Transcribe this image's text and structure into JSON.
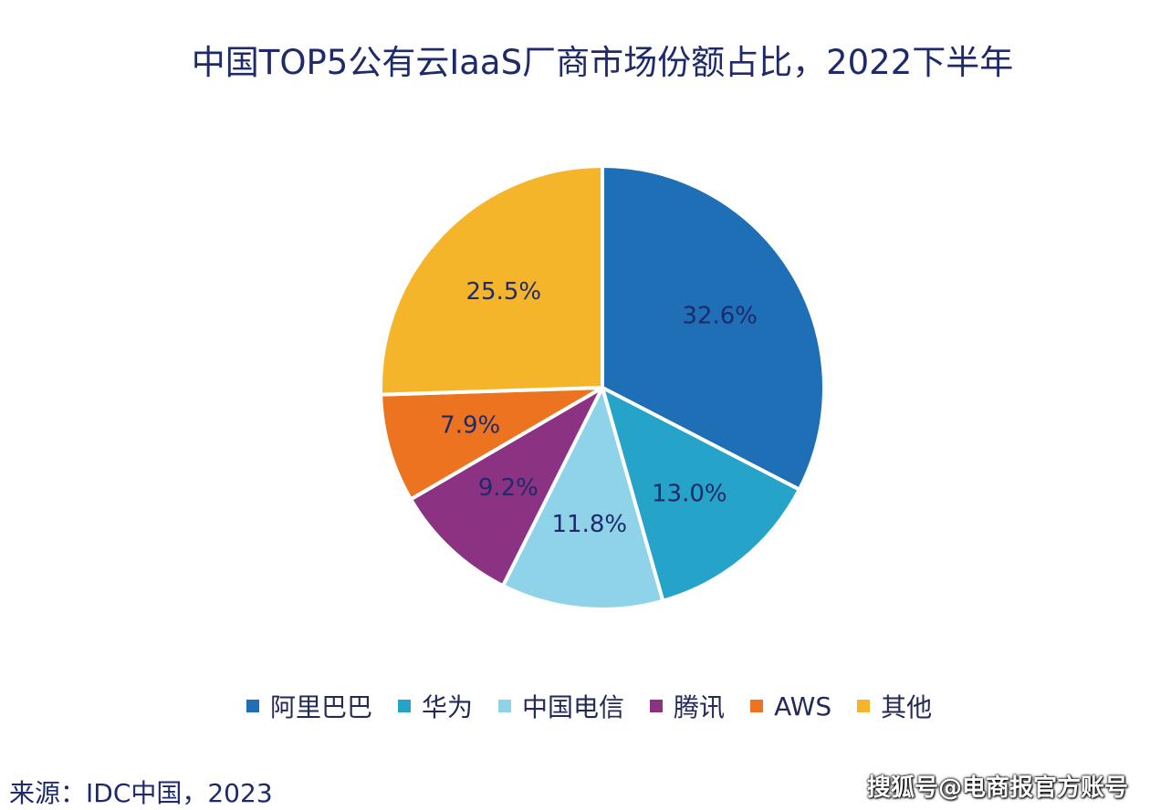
{
  "chart_data": {
    "type": "pie",
    "title": "中国TOP5公有云IaaS厂商市场份额占比，2022下半年",
    "slices": [
      {
        "label": "阿里巴巴",
        "value": 32.6,
        "display": "32.6%",
        "color": "#1e6fb6"
      },
      {
        "label": "华为",
        "value": 13.0,
        "display": "13.0%",
        "color": "#26a3c9"
      },
      {
        "label": "中国电信",
        "value": 11.8,
        "display": "11.8%",
        "color": "#8fd3e8"
      },
      {
        "label": "腾讯",
        "value": 9.2,
        "display": "9.2%",
        "color": "#8b3283"
      },
      {
        "label": "AWS",
        "value": 7.9,
        "display": "7.9%",
        "color": "#ec7420"
      },
      {
        "label": "其他",
        "value": 25.5,
        "display": "25.5%",
        "color": "#f4b52a"
      }
    ],
    "legend_position": "bottom",
    "source": "来源：IDC中国，2023"
  },
  "watermark": "搜狐号@电商报官方账号"
}
